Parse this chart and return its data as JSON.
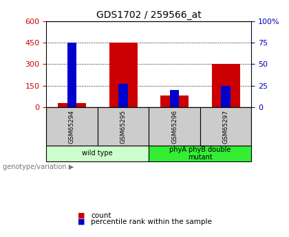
{
  "title": "GDS1702 / 259566_at",
  "samples": [
    "GSM65294",
    "GSM65295",
    "GSM65296",
    "GSM65297"
  ],
  "count_values": [
    30,
    450,
    80,
    300
  ],
  "percentile_values": [
    75,
    27,
    20,
    25
  ],
  "left_ylim": [
    0,
    600
  ],
  "left_yticks": [
    0,
    150,
    300,
    450,
    600
  ],
  "right_ylim": [
    0,
    100
  ],
  "right_yticks": [
    0,
    25,
    50,
    75,
    100
  ],
  "bar_color_red": "#cc0000",
  "bar_color_blue": "#0000cc",
  "left_tick_color": "#cc0000",
  "right_tick_color": "#0000bb",
  "groups": [
    {
      "label": "wild type",
      "indices": [
        0,
        1
      ],
      "color": "#ccffcc"
    },
    {
      "label": "phyA phyB double\nmutant",
      "indices": [
        2,
        3
      ],
      "color": "#33ee33"
    }
  ],
  "sample_box_color": "#cccccc",
  "legend_count_label": "count",
  "legend_percentile_label": "percentile rank within the sample",
  "genotype_label": "genotype/variation",
  "bar_width": 0.55,
  "blue_bar_width": 0.18
}
